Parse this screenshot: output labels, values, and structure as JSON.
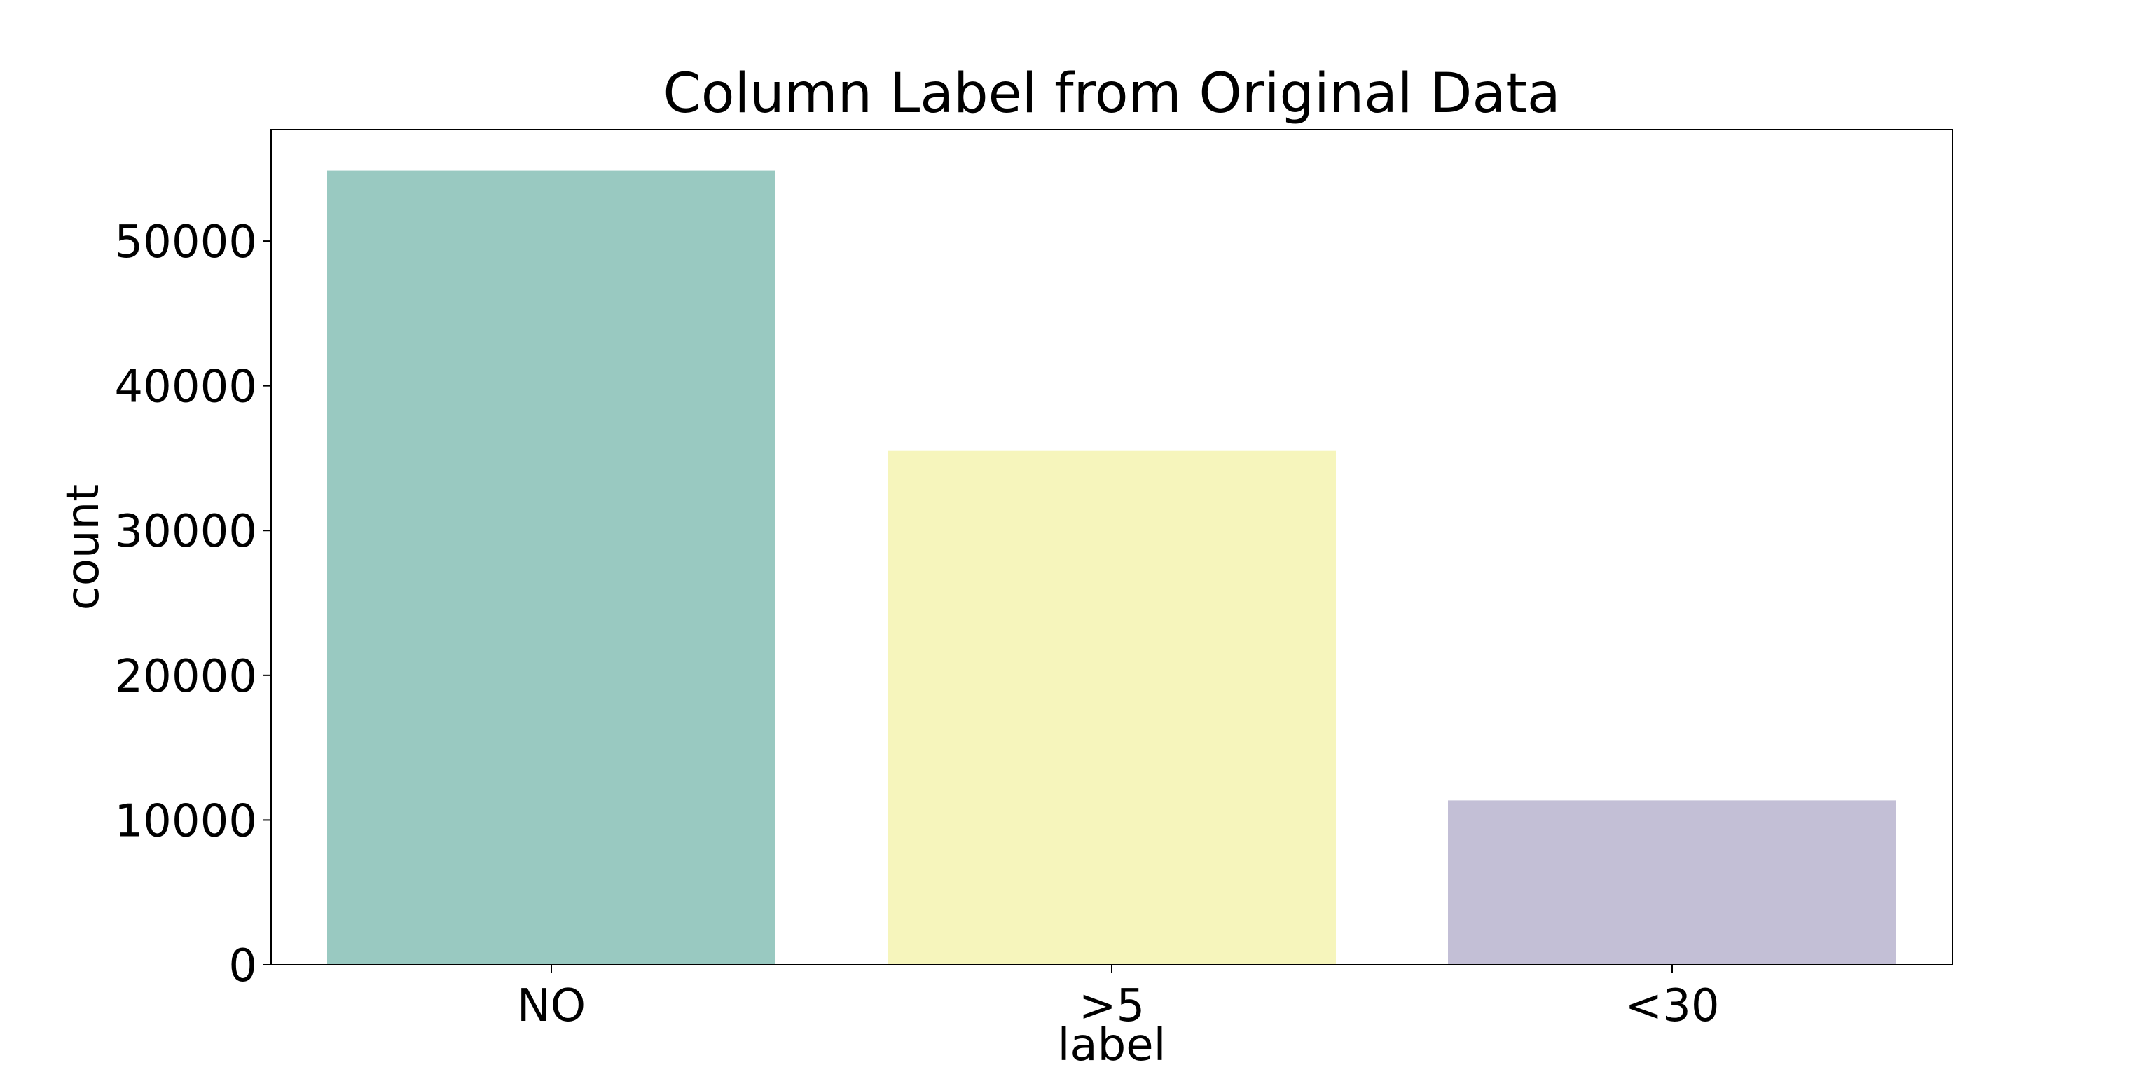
{
  "chart_data": {
    "type": "bar",
    "title": "Column Label from Original Data",
    "xlabel": "label",
    "ylabel": "count",
    "categories": [
      "NO",
      ">5",
      "<30"
    ],
    "values": [
      54864,
      35545,
      11357
    ],
    "colors": [
      "#99c9c1",
      "#f6f5bc",
      "#c3bfd6"
    ],
    "ylim": [
      0,
      57700
    ],
    "yticks": [
      0,
      10000,
      20000,
      30000,
      40000,
      50000
    ],
    "ytick_labels": [
      "0",
      "10000",
      "20000",
      "30000",
      "40000",
      "50000"
    ],
    "grid": false,
    "legend": "none"
  }
}
